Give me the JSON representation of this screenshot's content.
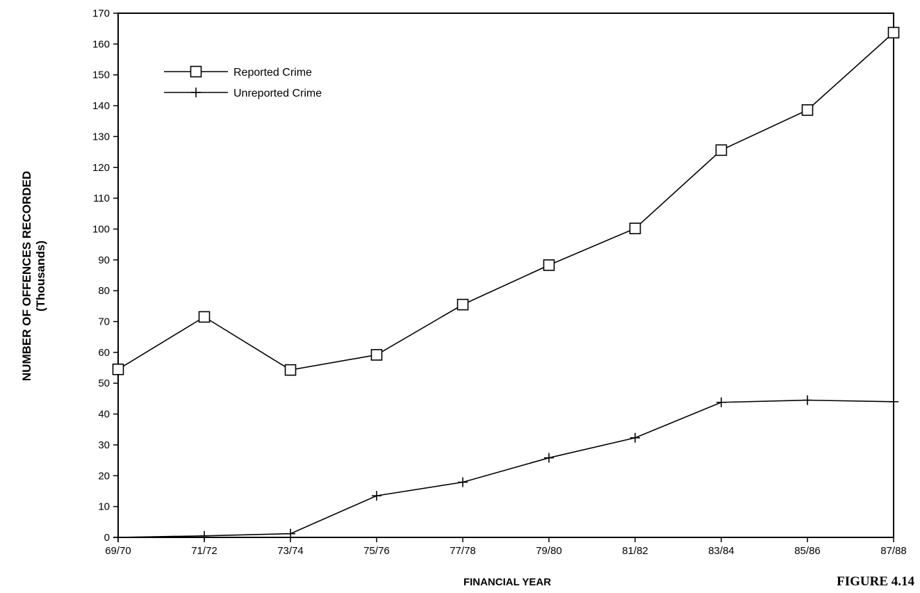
{
  "chart_data": {
    "type": "line",
    "title": "",
    "xlabel": "FINANCIAL YEAR",
    "ylabel": [
      "NUMBER OF OFFENCES RECORDED",
      "(Thousands)"
    ],
    "figure_label": "FIGURE 4.14",
    "categories": [
      "69/70",
      "71/72",
      "73/74",
      "75/76",
      "77/78",
      "79/80",
      "81/82",
      "83/84",
      "85/86",
      "87/88"
    ],
    "ylim": [
      0,
      170
    ],
    "yticks": [
      0,
      10,
      20,
      30,
      40,
      50,
      60,
      70,
      80,
      90,
      100,
      110,
      120,
      130,
      140,
      150,
      160,
      170
    ],
    "grid": false,
    "legend_position": "top-left",
    "series": [
      {
        "name": "Reported Crime",
        "marker": "square",
        "values": [
          54.5,
          71.5,
          54.3,
          59.2,
          75.5,
          88.3,
          100.2,
          125.6,
          138.6,
          163.7
        ]
      },
      {
        "name": "Unreported Crime",
        "marker": "plus",
        "values": [
          0,
          0.5,
          1.2,
          13.5,
          17.9,
          25.8,
          32.3,
          43.8,
          44.5,
          44
        ]
      }
    ]
  }
}
